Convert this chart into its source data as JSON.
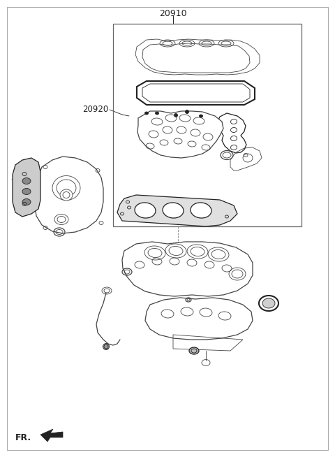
{
  "title": "20910",
  "label_20920": "20920",
  "label_fr": "FR.",
  "bg_color": "#ffffff",
  "line_color": "#444444",
  "dark_color": "#222222",
  "gray_color": "#888888",
  "figsize": [
    4.8,
    6.54
  ],
  "dpi": 100
}
